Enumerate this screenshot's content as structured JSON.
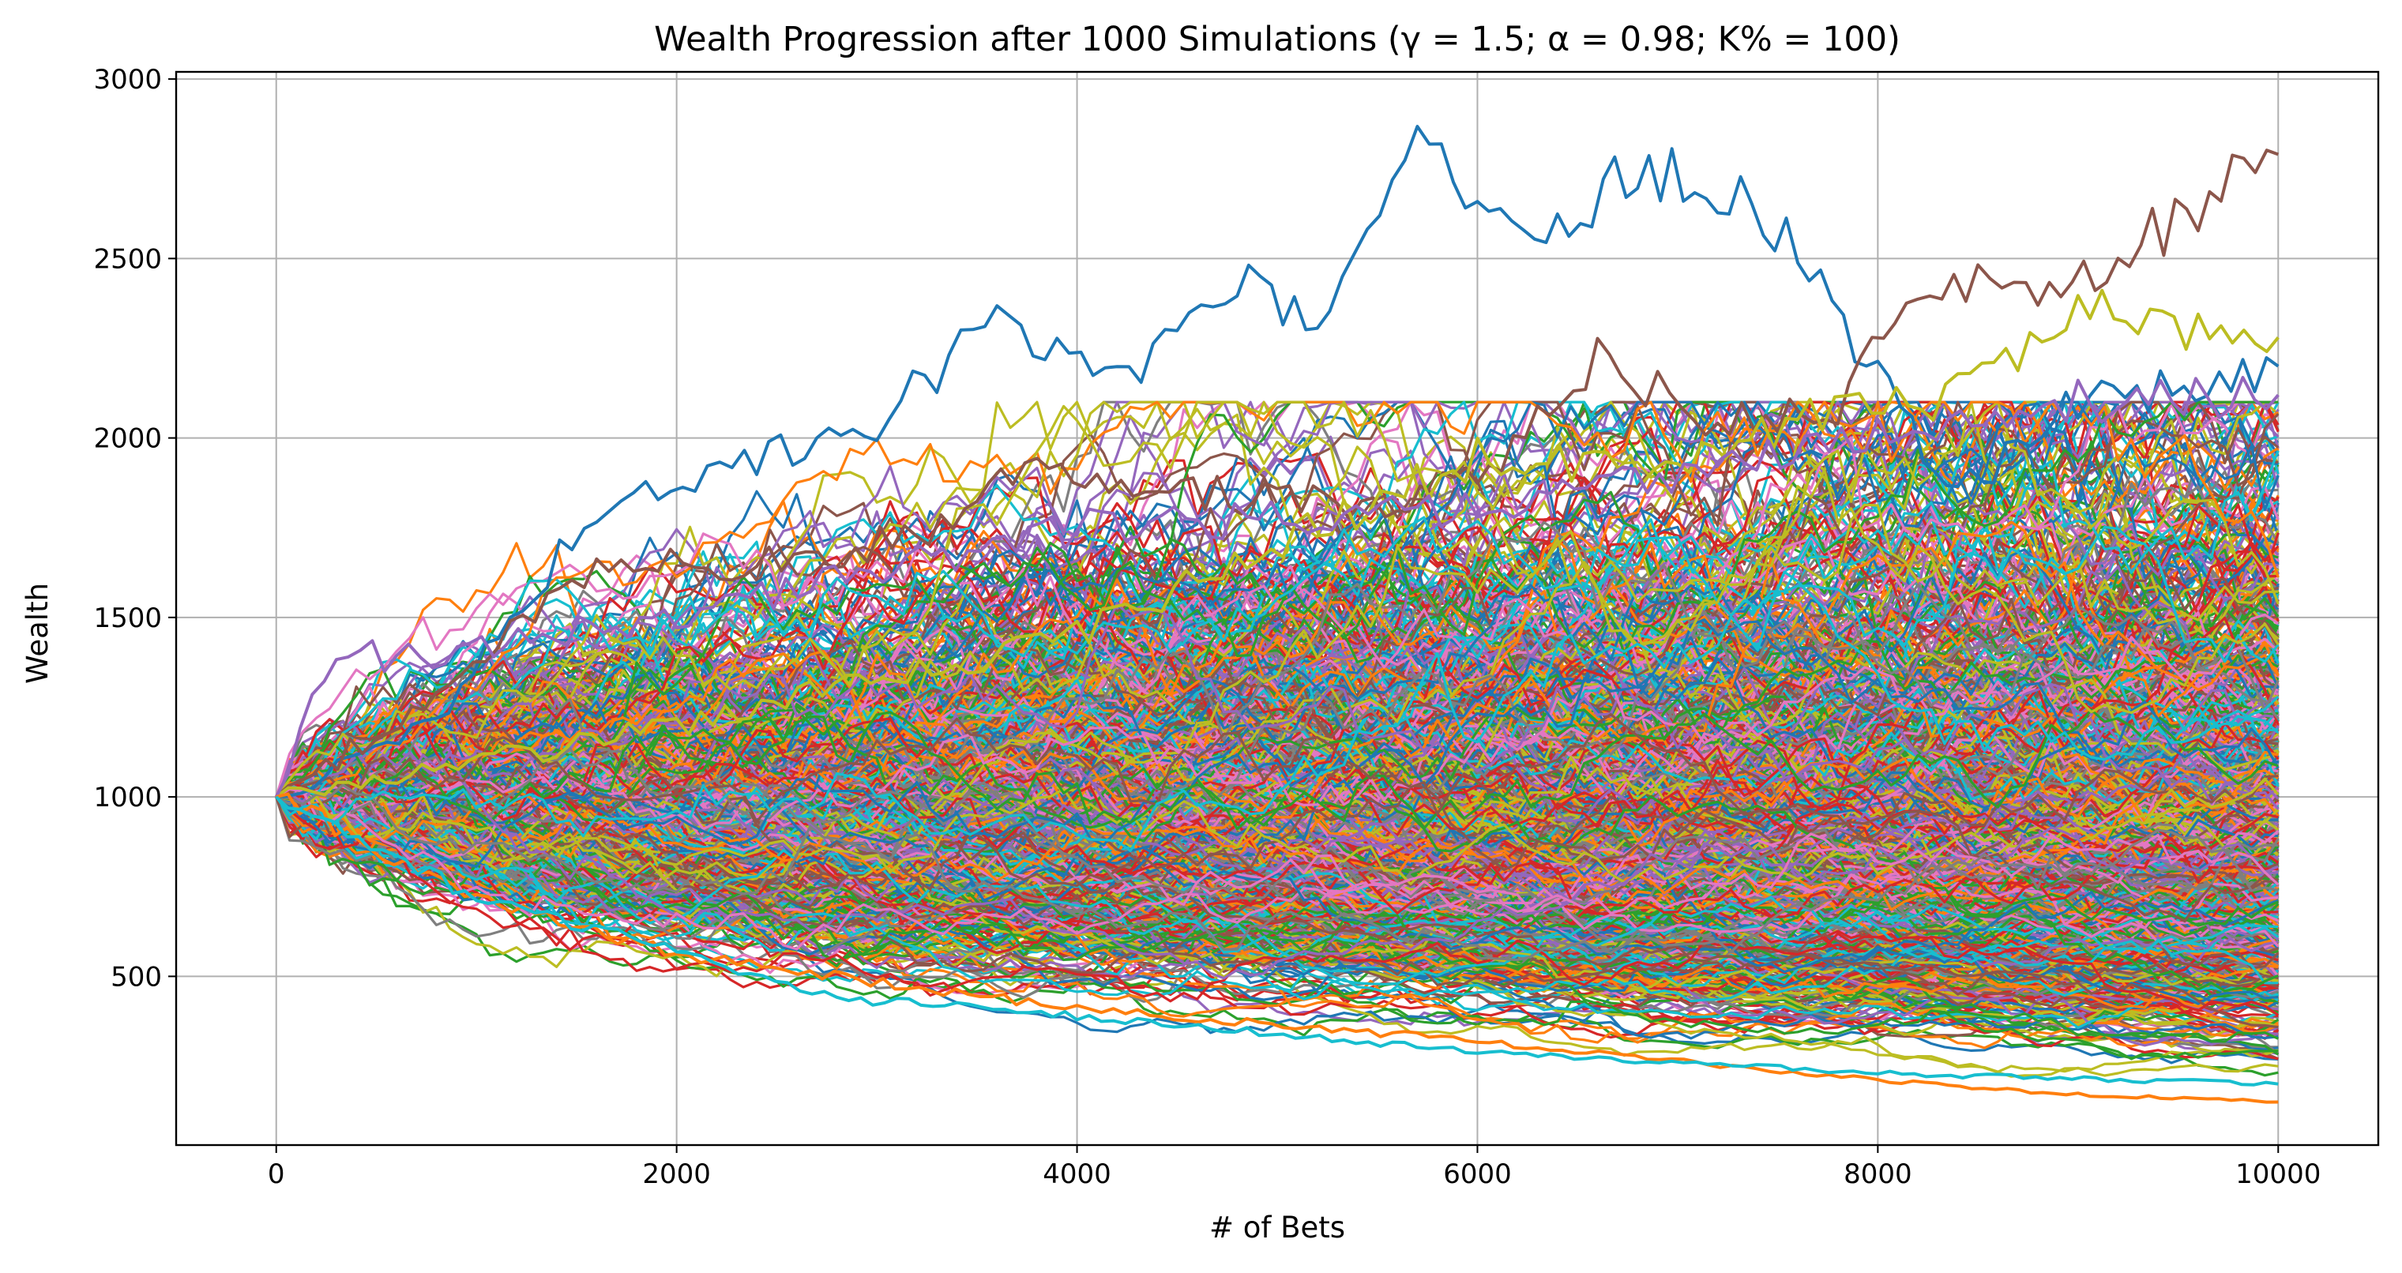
{
  "chart_data": {
    "type": "line",
    "title": "Wealth Progression after 1000 Simulations (γ = 1.5; α = 0.98; K% = 100)",
    "xlabel": "# of Bets",
    "ylabel": "Wealth",
    "xlim": [
      -500,
      10500
    ],
    "ylim": [
      30,
      3020
    ],
    "xticks": [
      0,
      2000,
      4000,
      6000,
      8000,
      10000
    ],
    "xtick_labels": [
      "0",
      "2000",
      "4000",
      "6000",
      "8000",
      "10000"
    ],
    "yticks": [
      500,
      1000,
      1500,
      2000,
      2500,
      3000
    ],
    "ytick_labels": [
      "500",
      "1000",
      "1500",
      "2000",
      "2500",
      "3000"
    ],
    "grid": true,
    "legend": "none",
    "simulations": 1000,
    "start_wealth": 1000,
    "num_bets": 10000,
    "series_colors": [
      "#1f77b4",
      "#ff7f0e",
      "#2ca02c",
      "#d62728",
      "#9467bd",
      "#8c564b",
      "#e377c2",
      "#7f7f7f",
      "#bcbd22",
      "#17becf"
    ],
    "highlighted_series": [
      {
        "color": "#1f77b4",
        "x": [
          0,
          800,
          1600,
          2400,
          3000,
          3600,
          4200,
          4800,
          5200,
          5700,
          6000,
          6400,
          6800,
          7200,
          7600,
          8000,
          8400,
          9000,
          10000
        ],
        "y": [
          1000,
          1220,
          1800,
          1950,
          2050,
          2330,
          2150,
          2420,
          2350,
          2800,
          2650,
          2560,
          2760,
          2700,
          2550,
          2150,
          1850,
          2100,
          2200
        ]
      },
      {
        "color": "#8c564b",
        "x": [
          0,
          800,
          1600,
          2400,
          3200,
          3800,
          4400,
          5000,
          5600,
          6000,
          6600,
          7200,
          7800,
          8200,
          8800,
          9200,
          9600,
          10000
        ],
        "y": [
          1000,
          1280,
          1650,
          1650,
          1720,
          1950,
          1870,
          1820,
          1820,
          1900,
          2220,
          2050,
          2100,
          2400,
          2430,
          2500,
          2650,
          2790
        ]
      },
      {
        "color": "#bcbd22",
        "x": [
          0,
          2000,
          4000,
          6000,
          7000,
          7600,
          8400,
          9000,
          9600,
          10000
        ],
        "y": [
          1000,
          1200,
          1450,
          1950,
          1920,
          2050,
          2120,
          2380,
          2300,
          2280
        ]
      },
      {
        "color": "#9467bd",
        "x": [
          0,
          300,
          600,
          2000,
          4000,
          6000,
          8000,
          9000,
          10000
        ],
        "y": [
          1000,
          1420,
          1380,
          1500,
          1750,
          1800,
          2000,
          2100,
          2120
        ]
      },
      {
        "color": "#ff7f0e",
        "x": [
          0,
          1000,
          2000,
          4000,
          6000,
          8000,
          9000,
          10000
        ],
        "y": [
          1000,
          720,
          560,
          410,
          320,
          210,
          170,
          150
        ]
      },
      {
        "color": "#17becf",
        "x": [
          0,
          1000,
          2000,
          2800,
          4000,
          6000,
          8000,
          10000
        ],
        "y": [
          1000,
          720,
          570,
          440,
          390,
          290,
          230,
          200
        ]
      }
    ]
  }
}
